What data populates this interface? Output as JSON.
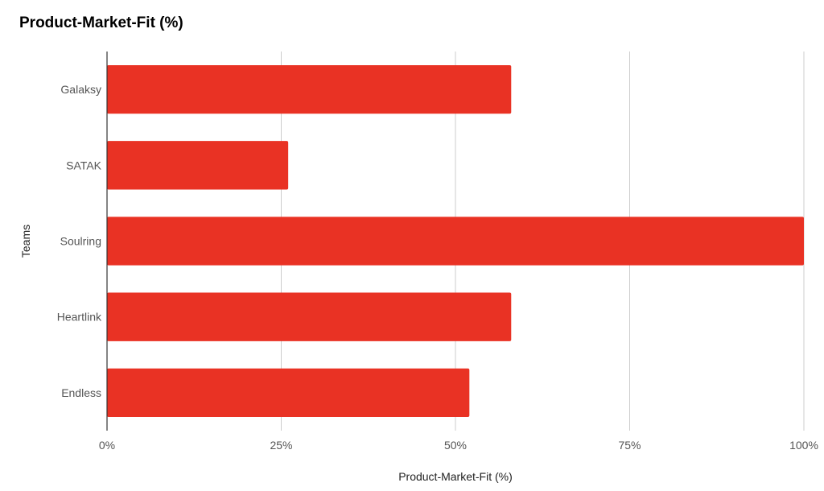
{
  "chart_data": {
    "type": "bar",
    "orientation": "horizontal",
    "title": "Product-Market-Fit (%)",
    "xlabel": "Product-Market-Fit (%)",
    "ylabel": "Teams",
    "categories": [
      "Galaksy",
      "SATAK",
      "Soulring",
      "Heartlink",
      "Endless"
    ],
    "values": [
      58,
      26,
      100,
      58,
      52
    ],
    "xlim": [
      0,
      100
    ],
    "xticks": [
      0,
      25,
      50,
      75,
      100
    ],
    "xtick_labels": [
      "0%",
      "25%",
      "50%",
      "75%",
      "100%"
    ],
    "grid": true,
    "legend": "none",
    "bar_color": "#e93224",
    "grid_color": "#cccccc",
    "axis_color": "#333333"
  }
}
